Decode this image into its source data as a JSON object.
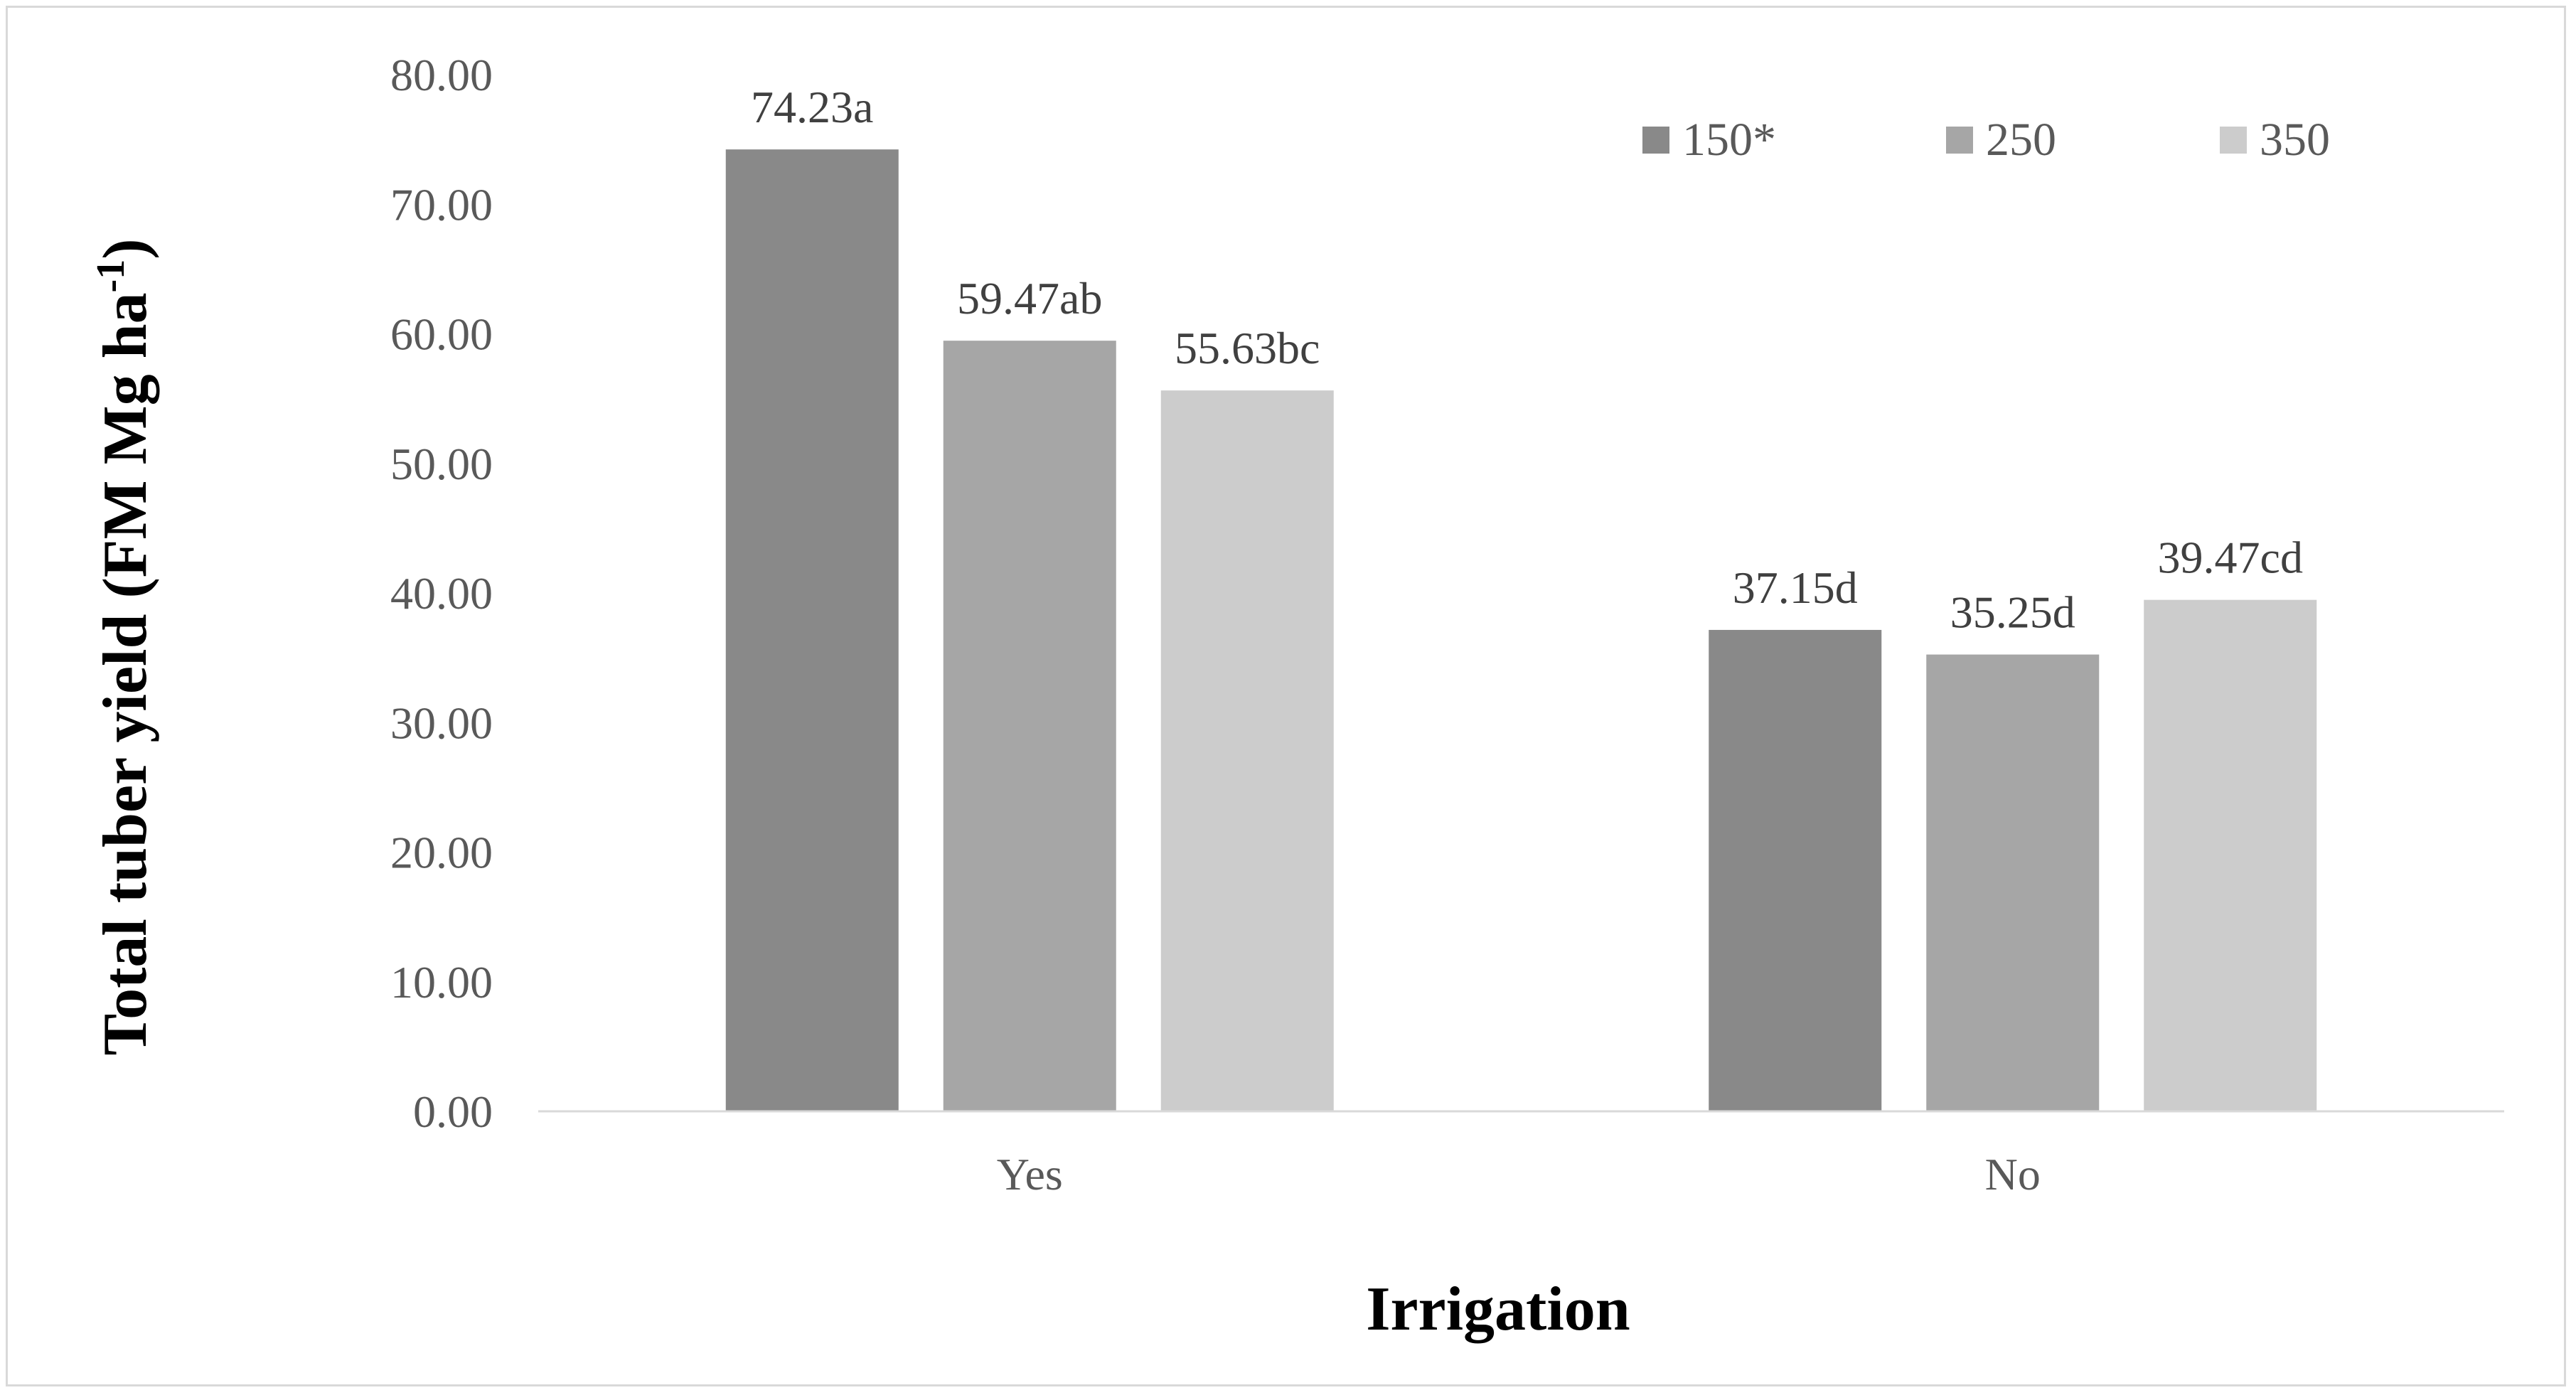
{
  "chart_data": {
    "type": "bar",
    "title": "",
    "xlabel": "Irrigation",
    "ylabel": "Total tuber yield (FM Mg ha",
    "ylabel_superscript": "-1",
    "ylabel_close": ")",
    "categories": [
      "Yes",
      "No"
    ],
    "series": [
      {
        "name": "150*",
        "color": "#898989",
        "values": [
          74.23,
          37.15
        ],
        "labels": [
          "74.23a",
          "37.15d"
        ]
      },
      {
        "name": "250",
        "color": "#a6a6a6",
        "values": [
          59.47,
          35.25
        ],
        "labels": [
          "59.47ab",
          "35.25d"
        ]
      },
      {
        "name": "350",
        "color": "#cccccc",
        "values": [
          55.63,
          39.47
        ],
        "labels": [
          "55.63bc",
          "39.47cd"
        ]
      }
    ],
    "ylim": [
      0,
      80
    ],
    "yticks": [
      "0.00",
      "10.00",
      "20.00",
      "30.00",
      "40.00",
      "50.00",
      "60.00",
      "70.00",
      "80.00"
    ],
    "ytick_values": [
      0,
      10,
      20,
      30,
      40,
      50,
      60,
      70,
      80
    ],
    "grid": false,
    "legend_position": "top-right"
  }
}
